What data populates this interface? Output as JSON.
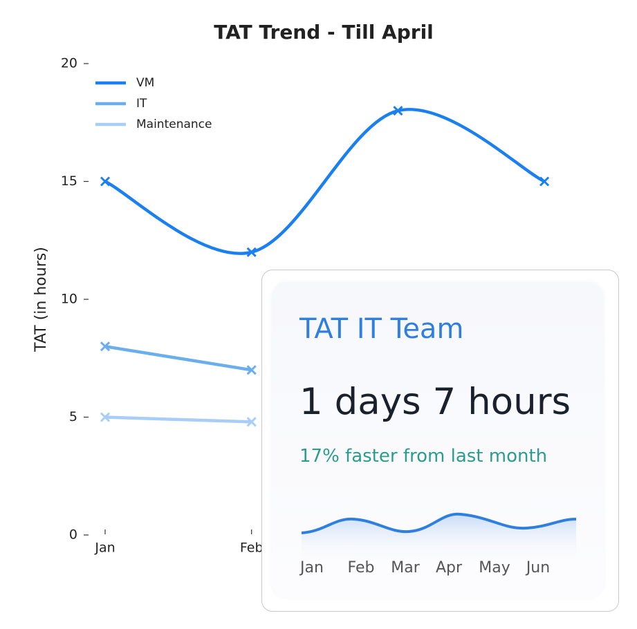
{
  "chart_data": {
    "type": "line",
    "title": "TAT Trend - Till April",
    "y_label": "TAT (in hours)",
    "categories": [
      "Jan",
      "Feb",
      null,
      null
    ],
    "series": [
      {
        "name": "VM",
        "color": "#1a7ff0",
        "values": [
          15,
          12,
          18,
          15
        ]
      },
      {
        "name": "IT",
        "color": "#6aaeee",
        "values": [
          8,
          7,
          null,
          null
        ]
      },
      {
        "name": "Maintenance",
        "color": "#a8cdf7",
        "values": [
          5,
          4.8,
          null,
          null
        ]
      }
    ],
    "ylim": [
      0,
      20
    ],
    "yticks": [
      0,
      5,
      10,
      15,
      20
    ],
    "legend": "upper left",
    "smooth": true,
    "marker": "x"
  },
  "card": {
    "title": "TAT IT Team",
    "value": "1 days 7 hours",
    "change": "17% faster from last month",
    "months": [
      "Jan",
      "Feb",
      "Mar",
      "Apr",
      "May",
      "Jun"
    ]
  }
}
